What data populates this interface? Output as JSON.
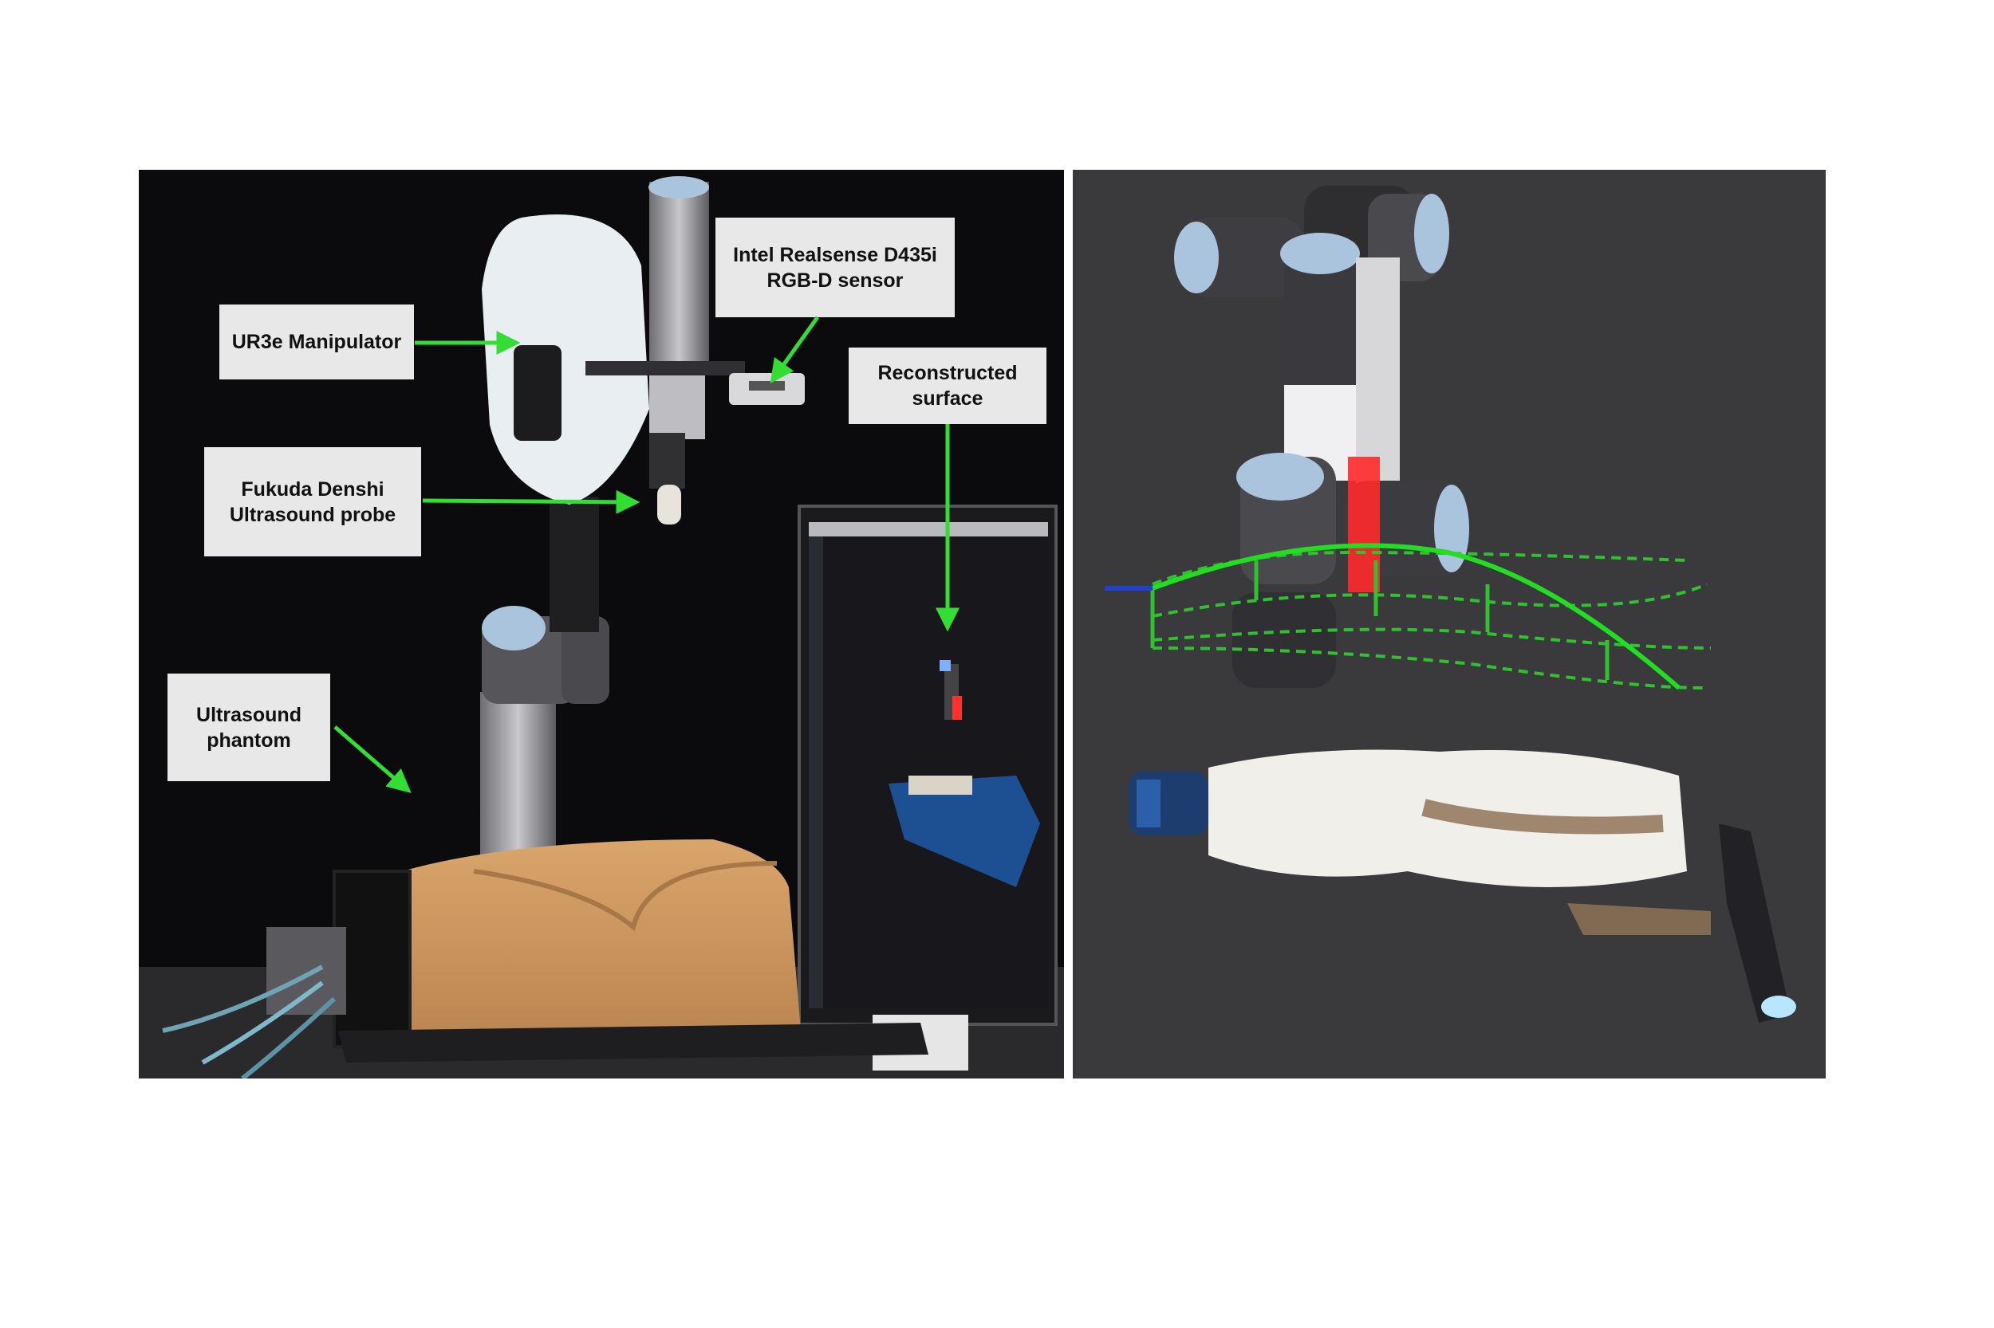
{
  "figure": {
    "left_panel": {
      "description_id": "photo-setup",
      "callouts": {
        "ur3e": "UR3e Manipulator",
        "realsense": "Intel Realsense  D435i\nRGB-D sensor",
        "reconstructed": "Reconstructed\nsurface",
        "probe": "Fukuda Denshi\nUltrasound probe",
        "phantom": "Ultrasound\nphantom"
      }
    },
    "right_panel": {}
  },
  "colors": {
    "arrow": "#33dd33",
    "background": "#ffffff",
    "callout_bg": "#e8e8e8",
    "robot_blue": "#a9c4dc",
    "robot_gray": "#4a4a4e",
    "phantom": "#c9955e",
    "trajectory": "#22dd22",
    "laser": "#ff2020"
  }
}
